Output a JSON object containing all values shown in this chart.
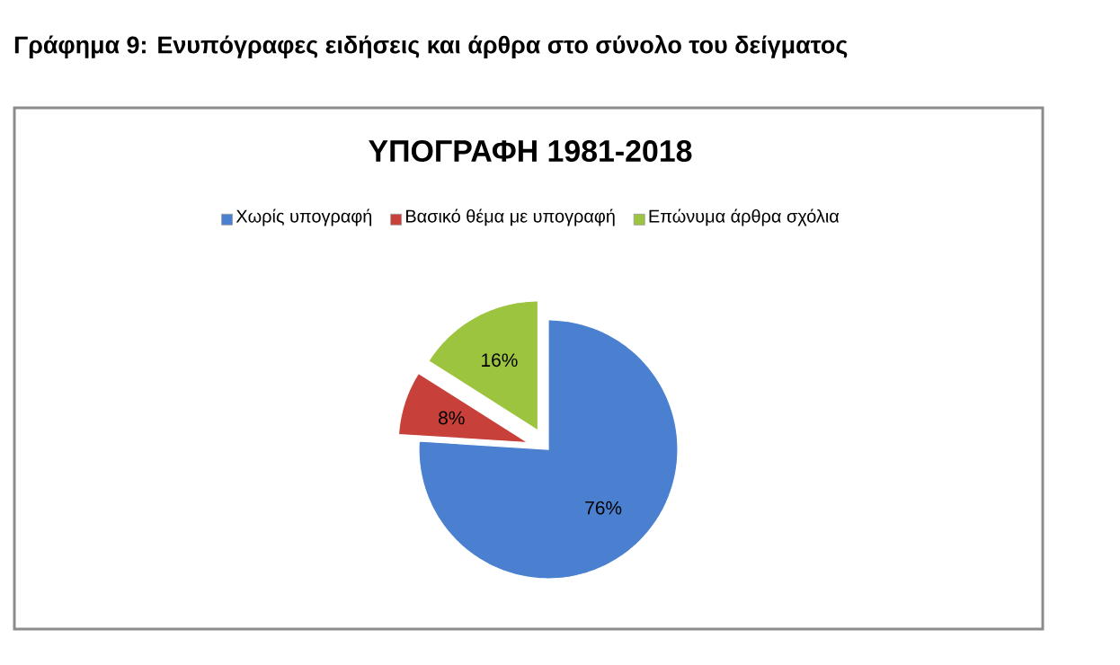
{
  "chart_data": {
    "type": "pie",
    "title": "Γράφημα 9: Ενυπόγραφες ειδήσεις και άρθρα στο σύνολο του δείγματος",
    "subtitle": "ΥΠΟΓΡΑΦΗ 1981-2018",
    "categories": [
      "Χωρίς υπογραφή",
      "Βασικό θέμα με υπογραφή",
      "Επώνυμα άρθρα σχόλια"
    ],
    "values": [
      76,
      8,
      16
    ],
    "colors": [
      "#4a80cf",
      "#c8403a",
      "#9cc43e"
    ],
    "value_labels": [
      "76%",
      "8%",
      "16%"
    ],
    "legend": "top"
  }
}
